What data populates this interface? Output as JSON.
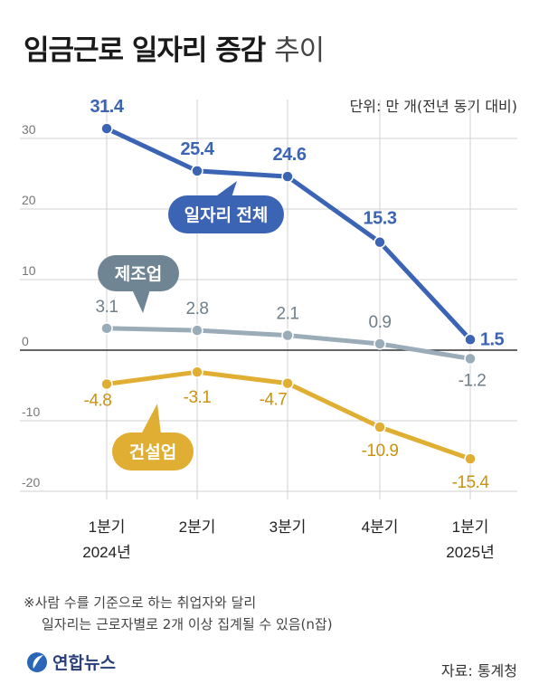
{
  "title_main": "임금근로 일자리 증감",
  "title_sub": "추이",
  "unit": "단위: 만 개(전년 동기 대비)",
  "footnote_line1": "※사람 수를 기준으로 하는 취업자와 달리",
  "footnote_line2": "일자리는 근로자별로 2개 이상 집계될 수 있음(n잡)",
  "source": "자료: 통계청",
  "logo_text": "연합뉴스",
  "colors": {
    "total": "#3c64b4",
    "manufacturing": "#9aacb8",
    "construction": "#e0ae33",
    "axis": "#333333",
    "grid": "#d0d0d0"
  },
  "chart_data": {
    "type": "line",
    "title": "임금근로 일자리 증감 추이",
    "ylabel": "단위: 만 개(전년 동기 대비)",
    "ylim": [
      -20,
      30
    ],
    "yticks": [
      "30",
      "20",
      "10",
      "0",
      "-10",
      "-20"
    ],
    "categories": [
      {
        "line1": "1분기",
        "line2": "2024년"
      },
      {
        "line1": "2분기",
        "line2": ""
      },
      {
        "line1": "3분기",
        "line2": ""
      },
      {
        "line1": "4분기",
        "line2": ""
      },
      {
        "line1": "1분기",
        "line2": "2025년"
      }
    ],
    "series": [
      {
        "name": "일자리 전체",
        "values": [
          31.4,
          25.4,
          24.6,
          15.3,
          1.5
        ],
        "labels": [
          "31.4",
          "25.4",
          "24.6",
          "15.3",
          "1.5"
        ]
      },
      {
        "name": "제조업",
        "values": [
          3.1,
          2.8,
          2.1,
          0.9,
          -1.2
        ],
        "labels": [
          "3.1",
          "2.8",
          "2.1",
          "0.9",
          "-1.2"
        ]
      },
      {
        "name": "건설업",
        "values": [
          -4.8,
          -3.1,
          -4.7,
          -10.9,
          -15.4
        ],
        "labels": [
          "-4.8",
          "-3.1",
          "-4.7",
          "-10.9",
          "-15.4"
        ]
      }
    ],
    "grid": true,
    "legend": "inline callouts"
  }
}
